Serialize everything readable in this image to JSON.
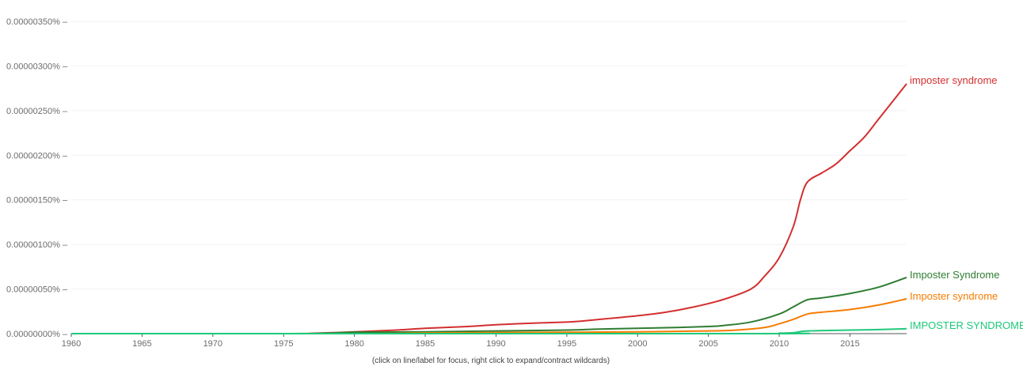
{
  "chart_data": {
    "type": "line",
    "title": "",
    "xlabel": "",
    "ylabel": "",
    "xlim": [
      1960,
      2019
    ],
    "ylim": [
      0,
      3.5e-06
    ],
    "x_ticks": [
      "1960",
      "1965",
      "1970",
      "1975",
      "1980",
      "1985",
      "1990",
      "1995",
      "2000",
      "2005",
      "2010",
      "2015"
    ],
    "y_ticks": [
      "0.00000000%",
      "0.00000050%",
      "0.00000100%",
      "0.00000150%",
      "0.00000200%",
      "0.00000250%",
      "0.00000300%",
      "0.00000350%"
    ],
    "grid": true,
    "legend": "inline-right",
    "series": [
      {
        "name": "imposter syndrome",
        "color": "#d32f2f",
        "points": [
          [
            1960,
            0
          ],
          [
            1975,
            0
          ],
          [
            1977,
            3e-09
          ],
          [
            1980,
            2e-08
          ],
          [
            1983,
            4e-08
          ],
          [
            1985,
            6e-08
          ],
          [
            1988,
            8e-08
          ],
          [
            1990,
            1e-07
          ],
          [
            1993,
            1.2e-07
          ],
          [
            1995,
            1.3e-07
          ],
          [
            1996,
            1.4e-07
          ],
          [
            1998,
            1.7e-07
          ],
          [
            2000,
            2e-07
          ],
          [
            2002,
            2.4e-07
          ],
          [
            2004,
            3e-07
          ],
          [
            2006,
            3.8e-07
          ],
          [
            2008,
            5e-07
          ],
          [
            2009,
            6.5e-07
          ],
          [
            2010,
            8.5e-07
          ],
          [
            2011,
            1.2e-06
          ],
          [
            2011.5,
            1.5e-06
          ],
          [
            2012,
            1.7e-06
          ],
          [
            2013,
            1.8e-06
          ],
          [
            2014,
            1.9e-06
          ],
          [
            2015,
            2.05e-06
          ],
          [
            2016,
            2.2e-06
          ],
          [
            2017,
            2.4e-06
          ],
          [
            2018,
            2.6e-06
          ],
          [
            2019,
            2.8e-06
          ]
        ]
      },
      {
        "name": "Imposter Syndrome",
        "color": "#2e7d32",
        "points": [
          [
            1960,
            0
          ],
          [
            1975,
            0
          ],
          [
            1978,
            5e-09
          ],
          [
            1980,
            1.5e-08
          ],
          [
            1985,
            2e-08
          ],
          [
            1990,
            3e-08
          ],
          [
            1995,
            4e-08
          ],
          [
            1997,
            5e-08
          ],
          [
            2000,
            6e-08
          ],
          [
            2003,
            7e-08
          ],
          [
            2005,
            8e-08
          ],
          [
            2006,
            9e-08
          ],
          [
            2008,
            1.3e-07
          ],
          [
            2010,
            2.2e-07
          ],
          [
            2011,
            3e-07
          ],
          [
            2012,
            3.8e-07
          ],
          [
            2013,
            4e-07
          ],
          [
            2015,
            4.5e-07
          ],
          [
            2017,
            5.2e-07
          ],
          [
            2019,
            6.3e-07
          ]
        ]
      },
      {
        "name": "Imposter syndrome",
        "color": "#f57c00",
        "points": [
          [
            1960,
            0
          ],
          [
            1980,
            0
          ],
          [
            1985,
            8e-09
          ],
          [
            1990,
            1.2e-08
          ],
          [
            1995,
            1.5e-08
          ],
          [
            2000,
            2e-08
          ],
          [
            2005,
            3e-08
          ],
          [
            2007,
            4e-08
          ],
          [
            2009,
            7e-08
          ],
          [
            2010,
            1.1e-07
          ],
          [
            2011,
            1.6e-07
          ],
          [
            2012,
            2.2e-07
          ],
          [
            2013,
            2.4e-07
          ],
          [
            2015,
            2.7e-07
          ],
          [
            2017,
            3.2e-07
          ],
          [
            2019,
            3.9e-07
          ]
        ]
      },
      {
        "name": "IMPOSTER SYNDROME",
        "color": "#1ec97a",
        "points": [
          [
            1960,
            0
          ],
          [
            2008,
            0
          ],
          [
            2010,
            5e-09
          ],
          [
            2011,
            1e-08
          ],
          [
            2012,
            3e-08
          ],
          [
            2015,
            4e-08
          ],
          [
            2017,
            4.5e-08
          ],
          [
            2019,
            5.5e-08
          ]
        ]
      }
    ]
  },
  "footnote": "(click on line/label for focus, right click to expand/contract wildcards)"
}
